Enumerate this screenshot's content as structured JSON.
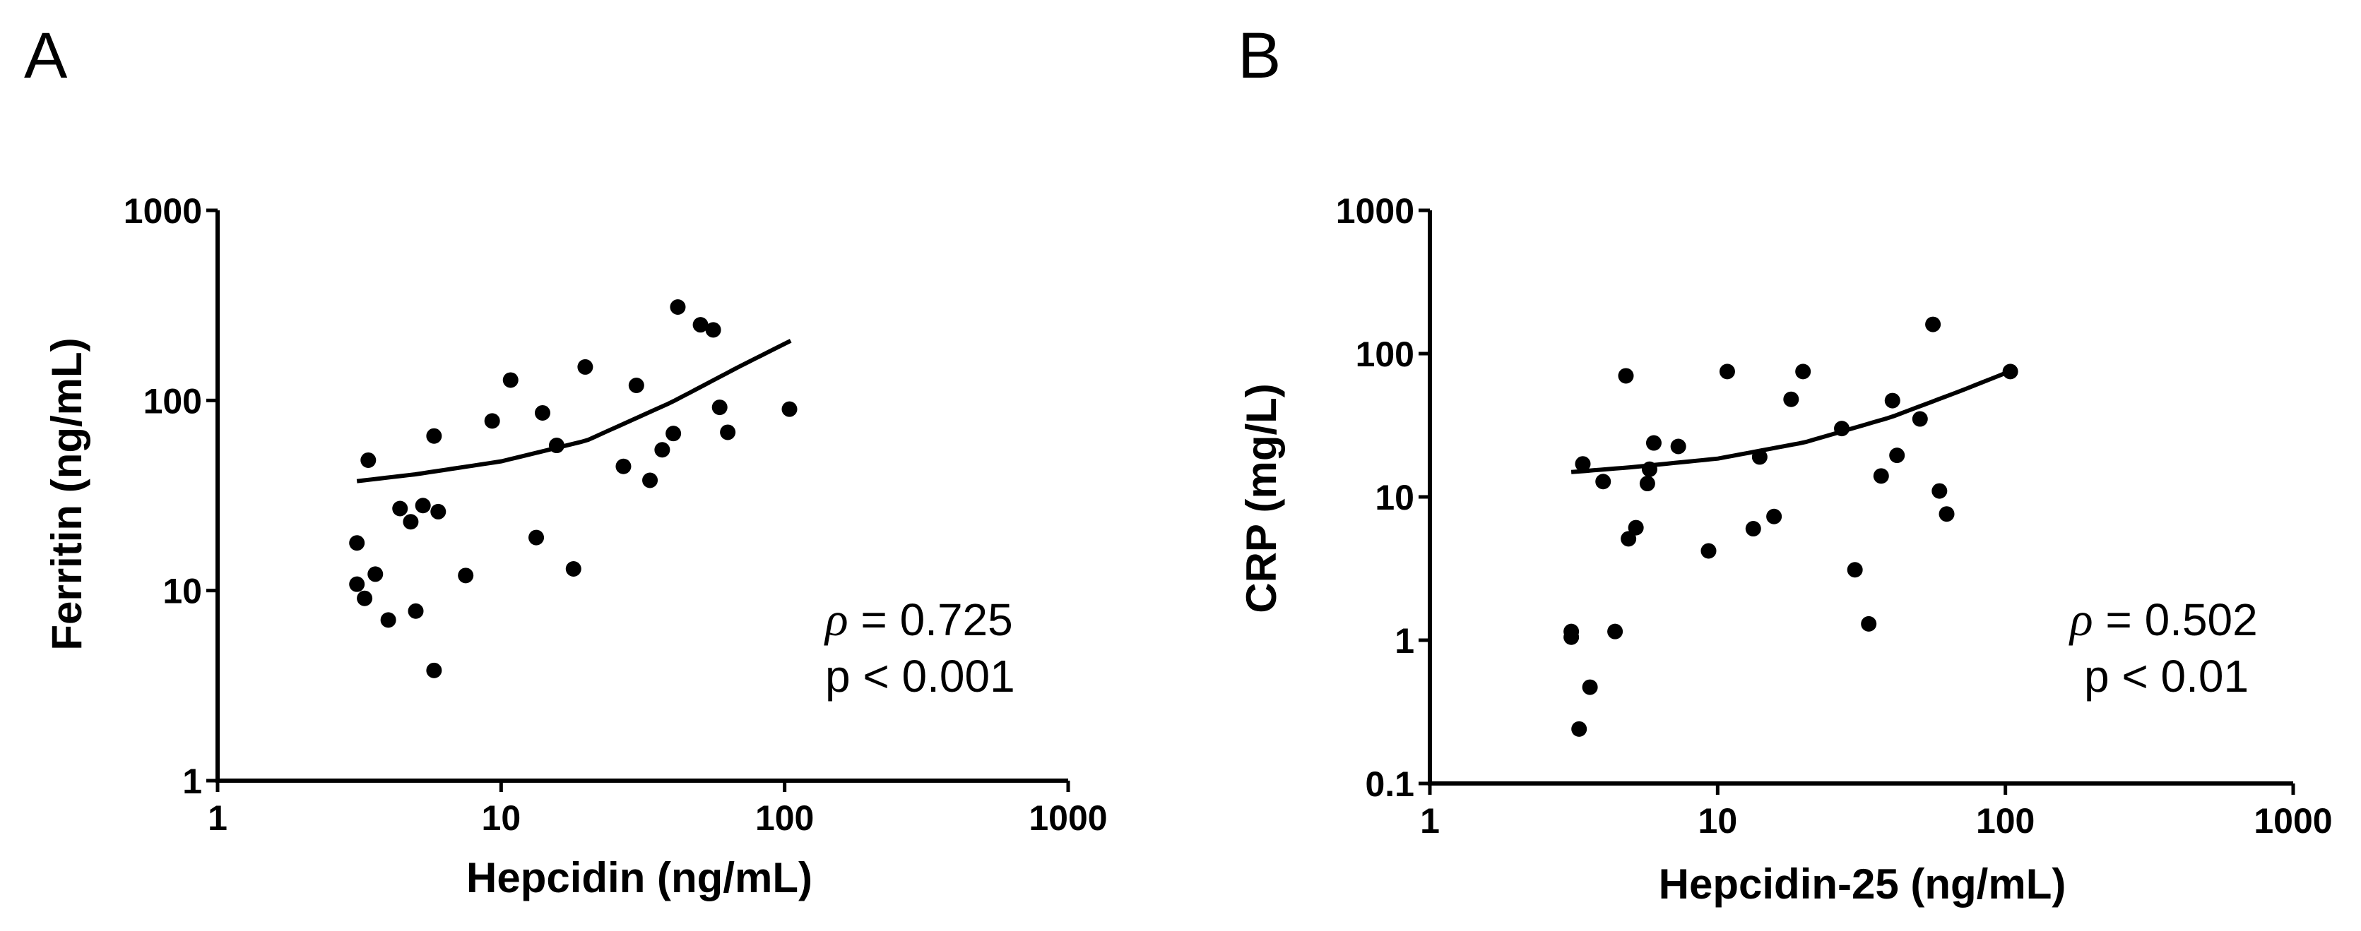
{
  "chart_data": [
    {
      "panel_label": "A",
      "type": "scatter",
      "xscale": "log",
      "yscale": "log",
      "xlabel": "Hepcidin (ng/mL)",
      "ylabel": "Ferritin (ng/mL)",
      "xlim": [
        1,
        1000
      ],
      "ylim": [
        1,
        1000
      ],
      "xticks": [
        1,
        10,
        100,
        1000
      ],
      "yticks": [
        1,
        10,
        100,
        1000
      ],
      "xtick_labels": [
        "1",
        "10",
        "100",
        "1000"
      ],
      "ytick_labels": [
        "1",
        "10",
        "100",
        "1000"
      ],
      "points": [
        [
          3.1,
          17.8
        ],
        [
          3.1,
          10.8
        ],
        [
          3.3,
          9.1
        ],
        [
          3.4,
          48.5
        ],
        [
          3.6,
          12.2
        ],
        [
          4.0,
          7.0
        ],
        [
          4.4,
          27.0
        ],
        [
          4.8,
          23.0
        ],
        [
          5.0,
          7.8
        ],
        [
          5.3,
          28.0
        ],
        [
          5.8,
          3.8
        ],
        [
          5.8,
          65.0
        ],
        [
          6.0,
          26.0
        ],
        [
          7.5,
          12.0
        ],
        [
          9.3,
          78.0
        ],
        [
          10.8,
          128.0
        ],
        [
          13.3,
          19.0
        ],
        [
          14.0,
          86.0
        ],
        [
          15.7,
          58.0
        ],
        [
          18.0,
          13.0
        ],
        [
          19.8,
          150.0
        ],
        [
          27.0,
          45.0
        ],
        [
          30.0,
          120.0
        ],
        [
          33.5,
          38.0
        ],
        [
          37.0,
          55.0
        ],
        [
          40.5,
          67.0
        ],
        [
          42.0,
          310.0
        ],
        [
          50.5,
          250.0
        ],
        [
          56.0,
          235.0
        ],
        [
          59.0,
          92.0
        ],
        [
          63.0,
          68.0
        ],
        [
          104.0,
          90.0
        ]
      ],
      "fit_curve": [
        [
          3.1,
          37.6
        ],
        [
          5,
          40.9
        ],
        [
          10,
          47.8
        ],
        [
          20,
          61.5
        ],
        [
          40,
          98.0
        ],
        [
          70,
          152.0
        ],
        [
          105,
          206.0
        ]
      ],
      "annotation": {
        "rho_symbol": "ρ",
        "rho_text": " = 0.725",
        "p_text": "p < 0.001"
      }
    },
    {
      "panel_label": "B",
      "type": "scatter",
      "xscale": "log",
      "yscale": "log",
      "xlabel": "Hepcidin-25 (ng/mL)",
      "ylabel": "CRP (mg/L)",
      "xlim": [
        1,
        1000
      ],
      "ylim": [
        0.1,
        1000
      ],
      "xticks": [
        1,
        10,
        100,
        1000
      ],
      "yticks": [
        0.1,
        1,
        10,
        100,
        1000
      ],
      "xtick_labels": [
        "1",
        "10",
        "100",
        "1000"
      ],
      "ytick_labels": [
        "0.1",
        "1",
        "10",
        "100",
        "1000"
      ],
      "points": [
        [
          3.1,
          1.15
        ],
        [
          3.1,
          1.05
        ],
        [
          3.3,
          0.24
        ],
        [
          3.4,
          17.0
        ],
        [
          3.6,
          0.47
        ],
        [
          4.0,
          12.8
        ],
        [
          4.4,
          1.15
        ],
        [
          4.8,
          70.0
        ],
        [
          4.9,
          5.1
        ],
        [
          5.2,
          6.1
        ],
        [
          5.7,
          12.4
        ],
        [
          5.8,
          15.6
        ],
        [
          6.0,
          23.8
        ],
        [
          7.3,
          22.5
        ],
        [
          9.3,
          4.2
        ],
        [
          10.8,
          75.0
        ],
        [
          13.3,
          6.0
        ],
        [
          14.0,
          19.0
        ],
        [
          15.7,
          7.3
        ],
        [
          18.0,
          48.0
        ],
        [
          19.8,
          75.0
        ],
        [
          27.0,
          30.0
        ],
        [
          30.0,
          3.1
        ],
        [
          33.5,
          1.3
        ],
        [
          37.0,
          14.0
        ],
        [
          40.5,
          47.0
        ],
        [
          42.0,
          19.5
        ],
        [
          50.5,
          35.0
        ],
        [
          56.0,
          160.0
        ],
        [
          59.0,
          11.0
        ],
        [
          62.5,
          7.6
        ],
        [
          104.0,
          75.0
        ]
      ],
      "fit_curve": [
        [
          3.1,
          14.9
        ],
        [
          5,
          16.1
        ],
        [
          10,
          18.5
        ],
        [
          20,
          24.0
        ],
        [
          40,
          36.0
        ],
        [
          70,
          55.0
        ],
        [
          105,
          76.0
        ]
      ],
      "annotation": {
        "rho_symbol": "ρ",
        "rho_text": " = 0.502",
        "p_text": "p < 0.01"
      }
    }
  ]
}
